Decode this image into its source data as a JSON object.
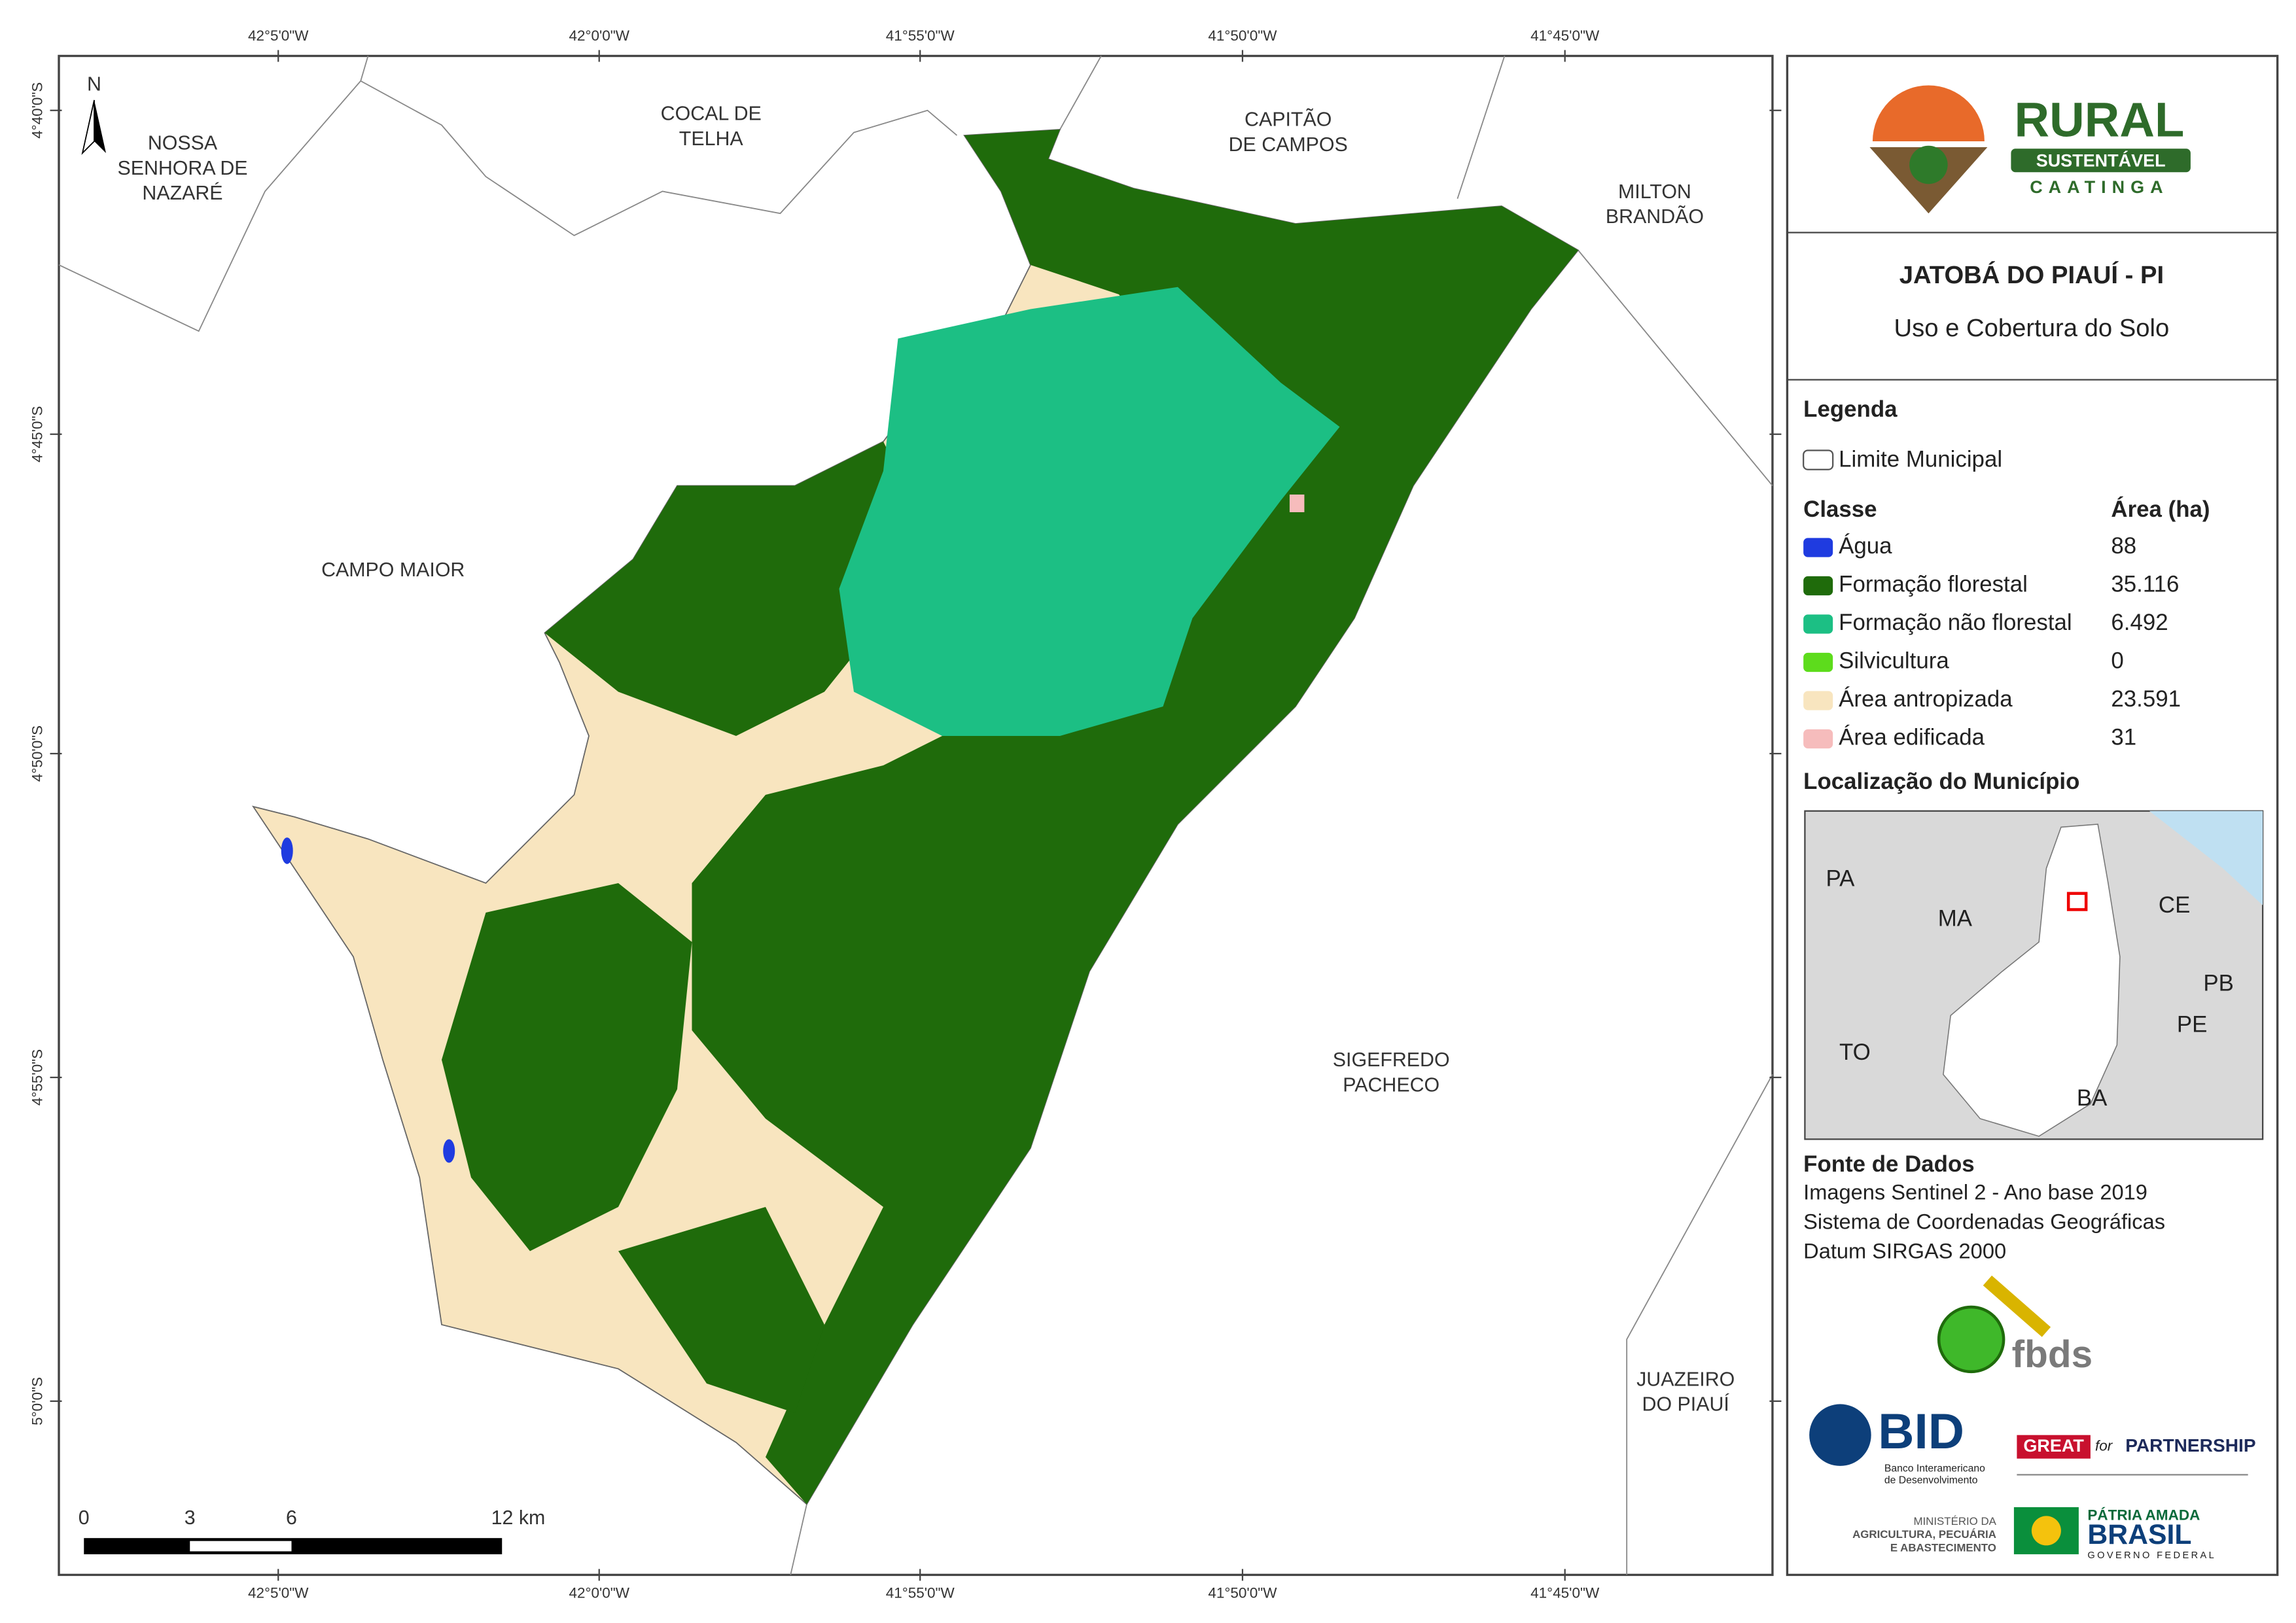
{
  "map": {
    "coords_top": [
      "42°5'0\"W",
      "42°0'0\"W",
      "41°55'0\"W",
      "41°50'0\"W",
      "41°45'0\"W"
    ],
    "coords_left": [
      "4°40'0\"S",
      "4°45'0\"S",
      "4°50'0\"S",
      "4°55'0\"S",
      "5°0'0\"S"
    ],
    "north": "N",
    "neighbors": [
      {
        "lines": [
          "NOSSA",
          "SENHORA DE",
          "NAZARÉ"
        ]
      },
      {
        "lines": [
          "COCAL DE",
          "TELHA"
        ]
      },
      {
        "lines": [
          "CAPITÃO",
          "DE CAMPOS"
        ]
      },
      {
        "lines": [
          "MILTON",
          "BRANDÃO"
        ]
      },
      {
        "lines": [
          "CAMPO MAIOR"
        ]
      },
      {
        "lines": [
          "SIGEFREDO",
          "PACHECO"
        ]
      },
      {
        "lines": [
          "JUAZEIRO",
          "DO PIAUÍ"
        ]
      }
    ],
    "scale_labels": [
      "0",
      "3",
      "6",
      "12 km"
    ]
  },
  "panel": {
    "logo": {
      "rural": "RURAL",
      "sustentavel": "SUSTENTÁVEL",
      "caatinga": "CAATINGA"
    },
    "title": "JATOBÁ DO PIAUÍ - PI",
    "subtitle": "Uso e Cobertura do Solo",
    "legend": {
      "heading": "Legenda",
      "boundary": "Limite Municipal",
      "class_header": "Classe",
      "area_header": "Área (ha)",
      "classes": [
        {
          "name": "Água",
          "area": "88",
          "color": "#1f3be0"
        },
        {
          "name": "Formação florestal",
          "area": "35.116",
          "color": "#1f6b0b"
        },
        {
          "name": "Formação não florestal",
          "area": "6.492",
          "color": "#1cbf84"
        },
        {
          "name": "Silvicultura",
          "area": "0",
          "color": "#5ddc1c"
        },
        {
          "name": "Área antropizada",
          "area": "23.591",
          "color": "#f8e5bf"
        },
        {
          "name": "Área edificada",
          "area": "31",
          "color": "#f6bcbc"
        }
      ]
    },
    "location": {
      "heading": "Localização do Município",
      "states": [
        "PA",
        "MA",
        "CE",
        "PB",
        "PE",
        "TO",
        "BA"
      ]
    },
    "source": {
      "heading": "Fonte de Dados",
      "lines": [
        "Imagens Sentinel 2 - Ano base 2019",
        "Sistema de Coordenadas Geográficas",
        "Datum SIRGAS 2000"
      ]
    },
    "partners": {
      "fbds": "fbds",
      "bid": "BID",
      "bid_sub": [
        "Banco Interamericano",
        "de Desenvolvimento"
      ],
      "great": "GREAT",
      "for": "for",
      "partnership": "PARTNERSHIP",
      "ministry": [
        "MINISTÉRIO DA",
        "AGRICULTURA, PECUÁRIA",
        "E ABASTECIMENTO"
      ],
      "patria": "PÁTRIA AMADA",
      "brasil": "BRASIL",
      "gov": "GOVERNO FEDERAL"
    }
  }
}
